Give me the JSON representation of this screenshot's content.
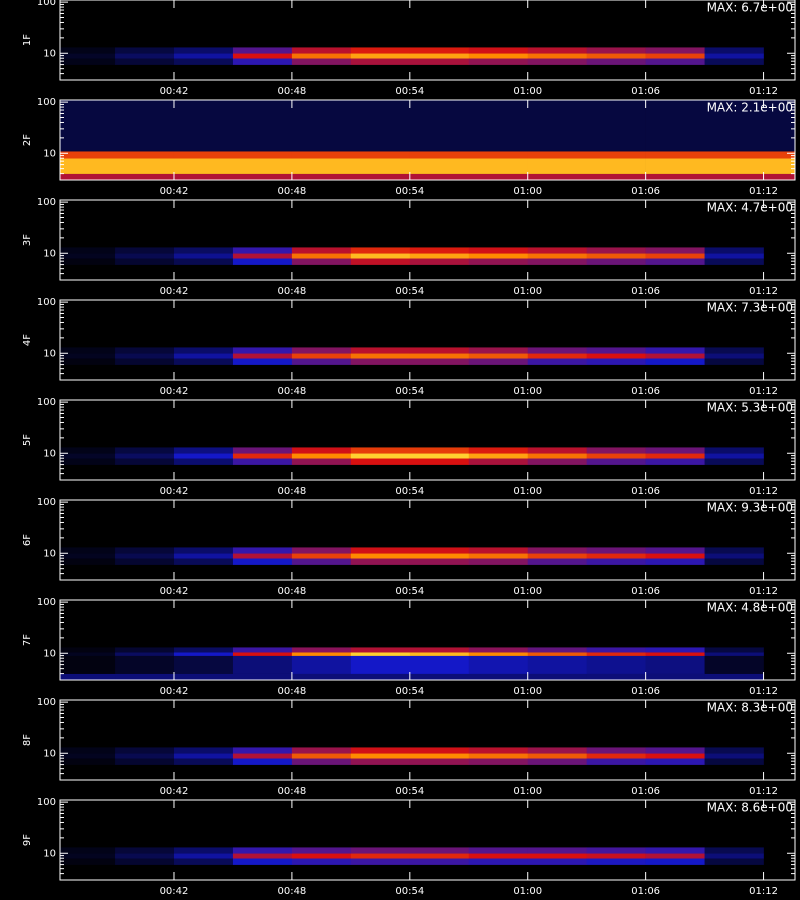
{
  "chart_data": [
    {
      "type": "spectrogram",
      "ylabel": "1F",
      "annotation": "MAX: 6.7e+00",
      "log_y": true,
      "xlim": [
        36.2,
        73.6
      ],
      "ylim": [
        3,
        110
      ],
      "xticks": [
        {
          "value": 42,
          "label": "00:42"
        },
        {
          "value": 48,
          "label": "00:48"
        },
        {
          "value": 54,
          "label": "00:54"
        },
        {
          "value": 60,
          "label": "01:00"
        },
        {
          "value": 66,
          "label": "01:06"
        },
        {
          "value": 72,
          "label": "01:12"
        }
      ],
      "yticks": [
        10,
        100
      ],
      "yminor_ticks": [
        4,
        5,
        6,
        7,
        8,
        9,
        20,
        30,
        40,
        50,
        60,
        70,
        80,
        90
      ],
      "colorscale": [
        "#000000",
        "#1418c8",
        "#d81010",
        "#ff8a00",
        "#ffff50"
      ],
      "zlim": [
        0,
        1
      ],
      "xbins": [
        36,
        39,
        42,
        45,
        48,
        51,
        54,
        57,
        60,
        63,
        66,
        69,
        72
      ],
      "ybins": [
        6,
        8,
        10,
        13
      ],
      "z": [
        [
          0.03,
          0.07,
          0.11,
          0.28,
          0.39,
          0.44,
          0.44,
          0.41,
          0.39,
          0.36,
          0.33,
          0.11
        ],
        [
          0.05,
          0.12,
          0.2,
          0.5,
          0.7,
          0.8,
          0.8,
          0.75,
          0.7,
          0.65,
          0.6,
          0.2
        ],
        [
          0.03,
          0.08,
          0.13,
          0.33,
          0.46,
          0.52,
          0.52,
          0.49,
          0.46,
          0.42,
          0.39,
          0.13
        ]
      ]
    },
    {
      "type": "spectrogram",
      "ylabel": "2F",
      "annotation": "MAX: 2.1e+00",
      "log_y": true,
      "xlim": [
        36.2,
        73.6
      ],
      "ylim": [
        3,
        110
      ],
      "xticks": [
        {
          "value": 42,
          "label": "00:42"
        },
        {
          "value": 48,
          "label": "00:48"
        },
        {
          "value": 54,
          "label": "00:54"
        },
        {
          "value": 60,
          "label": "01:00"
        },
        {
          "value": 66,
          "label": "01:06"
        },
        {
          "value": 72,
          "label": "01:12"
        }
      ],
      "yticks": [
        10,
        100
      ],
      "yminor_ticks": [
        4,
        5,
        6,
        7,
        8,
        9,
        20,
        30,
        40,
        50,
        60,
        70,
        80,
        90
      ],
      "colorscale": [
        "#000000",
        "#1418c8",
        "#d81010",
        "#ff8a00",
        "#ffff50"
      ],
      "zlim": [
        0,
        1
      ],
      "xbins": [
        36.2,
        42,
        48,
        54,
        60,
        66,
        73.6
      ],
      "ybins": [
        3,
        4,
        8,
        11,
        110
      ],
      "z": [
        [
          0.45,
          0.45,
          0.45,
          0.45,
          0.45,
          0.45
        ],
        [
          0.85,
          0.85,
          0.85,
          0.85,
          0.85,
          0.85
        ],
        [
          0.6,
          0.6,
          0.6,
          0.6,
          0.6,
          0.6
        ],
        [
          0.08,
          0.08,
          0.08,
          0.08,
          0.08,
          0.08
        ]
      ]
    },
    {
      "type": "spectrogram",
      "ylabel": "3F",
      "annotation": "MAX: 4.7e+00",
      "log_y": true,
      "xlim": [
        36.2,
        73.6
      ],
      "ylim": [
        3,
        110
      ],
      "xticks": [
        {
          "value": 42,
          "label": "00:42"
        },
        {
          "value": 48,
          "label": "00:48"
        },
        {
          "value": 54,
          "label": "00:54"
        },
        {
          "value": 60,
          "label": "01:00"
        },
        {
          "value": 66,
          "label": "01:06"
        },
        {
          "value": 72,
          "label": "01:12"
        }
      ],
      "yticks": [
        10,
        100
      ],
      "yminor_ticks": [
        4,
        5,
        6,
        7,
        8,
        9,
        20,
        30,
        40,
        50,
        60,
        70,
        80,
        90
      ],
      "colorscale": [
        "#000000",
        "#1418c8",
        "#d81010",
        "#ff8a00",
        "#ffff50"
      ],
      "zlim": [
        0,
        1
      ],
      "xbins": [
        36,
        39,
        42,
        45,
        48,
        51,
        54,
        57,
        60,
        63,
        66,
        69,
        72
      ],
      "ybins": [
        6,
        8,
        10,
        13
      ],
      "z": [
        [
          0.02,
          0.06,
          0.1,
          0.25,
          0.39,
          0.47,
          0.44,
          0.41,
          0.39,
          0.36,
          0.33,
          0.11
        ],
        [
          0.04,
          0.1,
          0.18,
          0.45,
          0.7,
          0.85,
          0.8,
          0.75,
          0.7,
          0.65,
          0.6,
          0.2
        ],
        [
          0.03,
          0.07,
          0.12,
          0.29,
          0.46,
          0.55,
          0.52,
          0.49,
          0.46,
          0.42,
          0.39,
          0.13
        ]
      ]
    },
    {
      "type": "spectrogram",
      "ylabel": "4F",
      "annotation": "MAX: 7.3e+00",
      "log_y": true,
      "xlim": [
        36.2,
        73.6
      ],
      "ylim": [
        3,
        110
      ],
      "xticks": [
        {
          "value": 42,
          "label": "00:42"
        },
        {
          "value": 48,
          "label": "00:48"
        },
        {
          "value": 54,
          "label": "00:54"
        },
        {
          "value": 60,
          "label": "01:00"
        },
        {
          "value": 66,
          "label": "01:06"
        },
        {
          "value": 72,
          "label": "01:12"
        }
      ],
      "yticks": [
        10,
        100
      ],
      "yminor_ticks": [
        4,
        5,
        6,
        7,
        8,
        9,
        20,
        30,
        40,
        50,
        60,
        70,
        80,
        90
      ],
      "colorscale": [
        "#000000",
        "#1418c8",
        "#d81010",
        "#ff8a00",
        "#ffff50"
      ],
      "zlim": [
        0,
        1
      ],
      "xbins": [
        36,
        39,
        42,
        45,
        48,
        51,
        54,
        57,
        60,
        63,
        66,
        69,
        72
      ],
      "ybins": [
        6,
        8,
        10,
        13
      ],
      "z": [
        [
          0.02,
          0.06,
          0.11,
          0.25,
          0.33,
          0.39,
          0.39,
          0.36,
          0.3,
          0.28,
          0.25,
          0.08
        ],
        [
          0.04,
          0.1,
          0.2,
          0.45,
          0.6,
          0.7,
          0.7,
          0.65,
          0.55,
          0.5,
          0.45,
          0.15
        ],
        [
          0.03,
          0.07,
          0.13,
          0.29,
          0.39,
          0.46,
          0.46,
          0.42,
          0.36,
          0.33,
          0.29,
          0.1
        ]
      ]
    },
    {
      "type": "spectrogram",
      "ylabel": "5F",
      "annotation": "MAX: 5.3e+00",
      "log_y": true,
      "xlim": [
        36.2,
        73.6
      ],
      "ylim": [
        3,
        110
      ],
      "xticks": [
        {
          "value": 42,
          "label": "00:42"
        },
        {
          "value": 48,
          "label": "00:48"
        },
        {
          "value": 54,
          "label": "00:54"
        },
        {
          "value": 60,
          "label": "01:00"
        },
        {
          "value": 66,
          "label": "01:06"
        },
        {
          "value": 72,
          "label": "01:12"
        }
      ],
      "yticks": [
        10,
        100
      ],
      "yminor_ticks": [
        4,
        5,
        6,
        7,
        8,
        9,
        20,
        30,
        40,
        50,
        60,
        70,
        80,
        90
      ],
      "colorscale": [
        "#000000",
        "#1418c8",
        "#d81010",
        "#ff8a00",
        "#ffff50"
      ],
      "zlim": [
        0,
        1
      ],
      "xbins": [
        36,
        39,
        42,
        45,
        48,
        51,
        54,
        57,
        60,
        63,
        66,
        69,
        72
      ],
      "ybins": [
        6,
        8,
        10,
        13
      ],
      "z": [
        [
          0.03,
          0.07,
          0.14,
          0.3,
          0.41,
          0.5,
          0.5,
          0.44,
          0.39,
          0.33,
          0.3,
          0.11
        ],
        [
          0.05,
          0.12,
          0.25,
          0.55,
          0.75,
          0.9,
          0.9,
          0.8,
          0.7,
          0.6,
          0.55,
          0.2
        ],
        [
          0.03,
          0.08,
          0.16,
          0.36,
          0.49,
          0.59,
          0.59,
          0.52,
          0.46,
          0.39,
          0.36,
          0.13
        ]
      ]
    },
    {
      "type": "spectrogram",
      "ylabel": "6F",
      "annotation": "MAX: 9.3e+00",
      "log_y": true,
      "xlim": [
        36.2,
        73.6
      ],
      "ylim": [
        3,
        110
      ],
      "xticks": [
        {
          "value": 42,
          "label": "00:42"
        },
        {
          "value": 48,
          "label": "00:48"
        },
        {
          "value": 54,
          "label": "00:54"
        },
        {
          "value": 60,
          "label": "01:00"
        },
        {
          "value": 66,
          "label": "01:06"
        },
        {
          "value": 72,
          "label": "01:12"
        }
      ],
      "yticks": [
        10,
        100
      ],
      "yminor_ticks": [
        4,
        5,
        6,
        7,
        8,
        9,
        20,
        30,
        40,
        50,
        60,
        70,
        80,
        90
      ],
      "colorscale": [
        "#000000",
        "#1418c8",
        "#d81010",
        "#ff8a00",
        "#ffff50"
      ],
      "zlim": [
        0,
        1
      ],
      "xbins": [
        36,
        39,
        42,
        45,
        48,
        51,
        54,
        57,
        60,
        63,
        66,
        69,
        72
      ],
      "ybins": [
        6,
        8,
        10,
        13
      ],
      "z": [
        [
          0.02,
          0.06,
          0.11,
          0.25,
          0.33,
          0.41,
          0.41,
          0.39,
          0.33,
          0.3,
          0.28,
          0.08
        ],
        [
          0.04,
          0.1,
          0.2,
          0.45,
          0.6,
          0.75,
          0.75,
          0.7,
          0.6,
          0.55,
          0.5,
          0.15
        ],
        [
          0.03,
          0.07,
          0.13,
          0.29,
          0.39,
          0.49,
          0.49,
          0.46,
          0.39,
          0.36,
          0.33,
          0.1
        ]
      ]
    },
    {
      "type": "spectrogram",
      "ylabel": "7F",
      "annotation": "MAX: 4.8e+00",
      "log_y": true,
      "xlim": [
        36.2,
        73.6
      ],
      "ylim": [
        3,
        110
      ],
      "xticks": [
        {
          "value": 42,
          "label": "00:42"
        },
        {
          "value": 48,
          "label": "00:48"
        },
        {
          "value": 54,
          "label": "00:54"
        },
        {
          "value": 60,
          "label": "01:00"
        },
        {
          "value": 66,
          "label": "01:06"
        },
        {
          "value": 72,
          "label": "01:12"
        }
      ],
      "yticks": [
        10,
        100
      ],
      "yminor_ticks": [
        4,
        5,
        6,
        7,
        8,
        9,
        20,
        30,
        40,
        50,
        60,
        70,
        80,
        90
      ],
      "colorscale": [
        "#000000",
        "#1418c8",
        "#d81010",
        "#ff8a00",
        "#ffff50"
      ],
      "zlim": [
        0,
        1
      ],
      "xbins": [
        36,
        39,
        42,
        45,
        48,
        51,
        54,
        57,
        60,
        63,
        66,
        69,
        72
      ],
      "ybins": [
        3,
        4,
        9,
        10.5,
        13
      ],
      "z": [
        [
          0.15,
          0.15,
          0.15,
          0.15,
          0.15,
          0.15,
          0.15,
          0.15,
          0.15,
          0.15,
          0.15,
          0.15
        ],
        [
          0.02,
          0.05,
          0.08,
          0.15,
          0.2,
          0.25,
          0.25,
          0.22,
          0.2,
          0.18,
          0.16,
          0.05
        ],
        [
          0.04,
          0.12,
          0.25,
          0.5,
          0.75,
          0.9,
          0.85,
          0.75,
          0.65,
          0.55,
          0.5,
          0.15
        ],
        [
          0.02,
          0.06,
          0.12,
          0.3,
          0.4,
          0.45,
          0.45,
          0.4,
          0.35,
          0.3,
          0.28,
          0.08
        ]
      ]
    },
    {
      "type": "spectrogram",
      "ylabel": "8F",
      "annotation": "MAX: 8.3e+00",
      "log_y": true,
      "xlim": [
        36.2,
        73.6
      ],
      "ylim": [
        3,
        110
      ],
      "xticks": [
        {
          "value": 42,
          "label": "00:42"
        },
        {
          "value": 48,
          "label": "00:48"
        },
        {
          "value": 54,
          "label": "00:54"
        },
        {
          "value": 60,
          "label": "01:00"
        },
        {
          "value": 66,
          "label": "01:06"
        },
        {
          "value": 72,
          "label": "01:12"
        }
      ],
      "yticks": [
        10,
        100
      ],
      "yminor_ticks": [
        4,
        5,
        6,
        7,
        8,
        9,
        20,
        30,
        40,
        50,
        60,
        70,
        80,
        90
      ],
      "colorscale": [
        "#000000",
        "#1418c8",
        "#d81010",
        "#ff8a00",
        "#ffff50"
      ],
      "zlim": [
        0,
        1
      ],
      "xbins": [
        36,
        39,
        42,
        45,
        48,
        51,
        54,
        57,
        60,
        63,
        66,
        69,
        72
      ],
      "ybins": [
        6,
        8,
        10,
        13
      ],
      "z": [
        [
          0.02,
          0.06,
          0.11,
          0.25,
          0.36,
          0.41,
          0.41,
          0.39,
          0.36,
          0.3,
          0.28,
          0.08
        ],
        [
          0.04,
          0.1,
          0.2,
          0.45,
          0.65,
          0.75,
          0.75,
          0.7,
          0.65,
          0.55,
          0.5,
          0.15
        ],
        [
          0.03,
          0.07,
          0.13,
          0.29,
          0.42,
          0.49,
          0.49,
          0.46,
          0.42,
          0.36,
          0.33,
          0.1
        ]
      ]
    },
    {
      "type": "spectrogram",
      "ylabel": "9F",
      "annotation": "MAX: 8.6e+00",
      "log_y": true,
      "xlim": [
        36.2,
        73.6
      ],
      "ylim": [
        3,
        110
      ],
      "xticks": [
        {
          "value": 42,
          "label": "00:42"
        },
        {
          "value": 48,
          "label": "00:48"
        },
        {
          "value": 54,
          "label": "00:54"
        },
        {
          "value": 60,
          "label": "01:00"
        },
        {
          "value": 66,
          "label": "01:06"
        },
        {
          "value": 72,
          "label": "01:12"
        }
      ],
      "yticks": [
        10,
        100
      ],
      "yminor_ticks": [
        4,
        5,
        6,
        7,
        8,
        9,
        20,
        30,
        40,
        50,
        60,
        70,
        80,
        90
      ],
      "colorscale": [
        "#000000",
        "#1418c8",
        "#d81010",
        "#ff8a00",
        "#ffff50"
      ],
      "zlim": [
        0,
        1
      ],
      "xbins": [
        36,
        39,
        42,
        45,
        48,
        51,
        54,
        57,
        60,
        63,
        66,
        69,
        72
      ],
      "ybins": [
        6,
        8,
        10,
        13
      ],
      "z": [
        [
          0.02,
          0.06,
          0.11,
          0.25,
          0.28,
          0.3,
          0.3,
          0.28,
          0.28,
          0.26,
          0.25,
          0.08
        ],
        [
          0.04,
          0.1,
          0.2,
          0.45,
          0.5,
          0.55,
          0.55,
          0.5,
          0.5,
          0.48,
          0.45,
          0.15
        ],
        [
          0.03,
          0.07,
          0.13,
          0.29,
          0.33,
          0.36,
          0.36,
          0.33,
          0.33,
          0.31,
          0.29,
          0.1
        ]
      ]
    }
  ]
}
